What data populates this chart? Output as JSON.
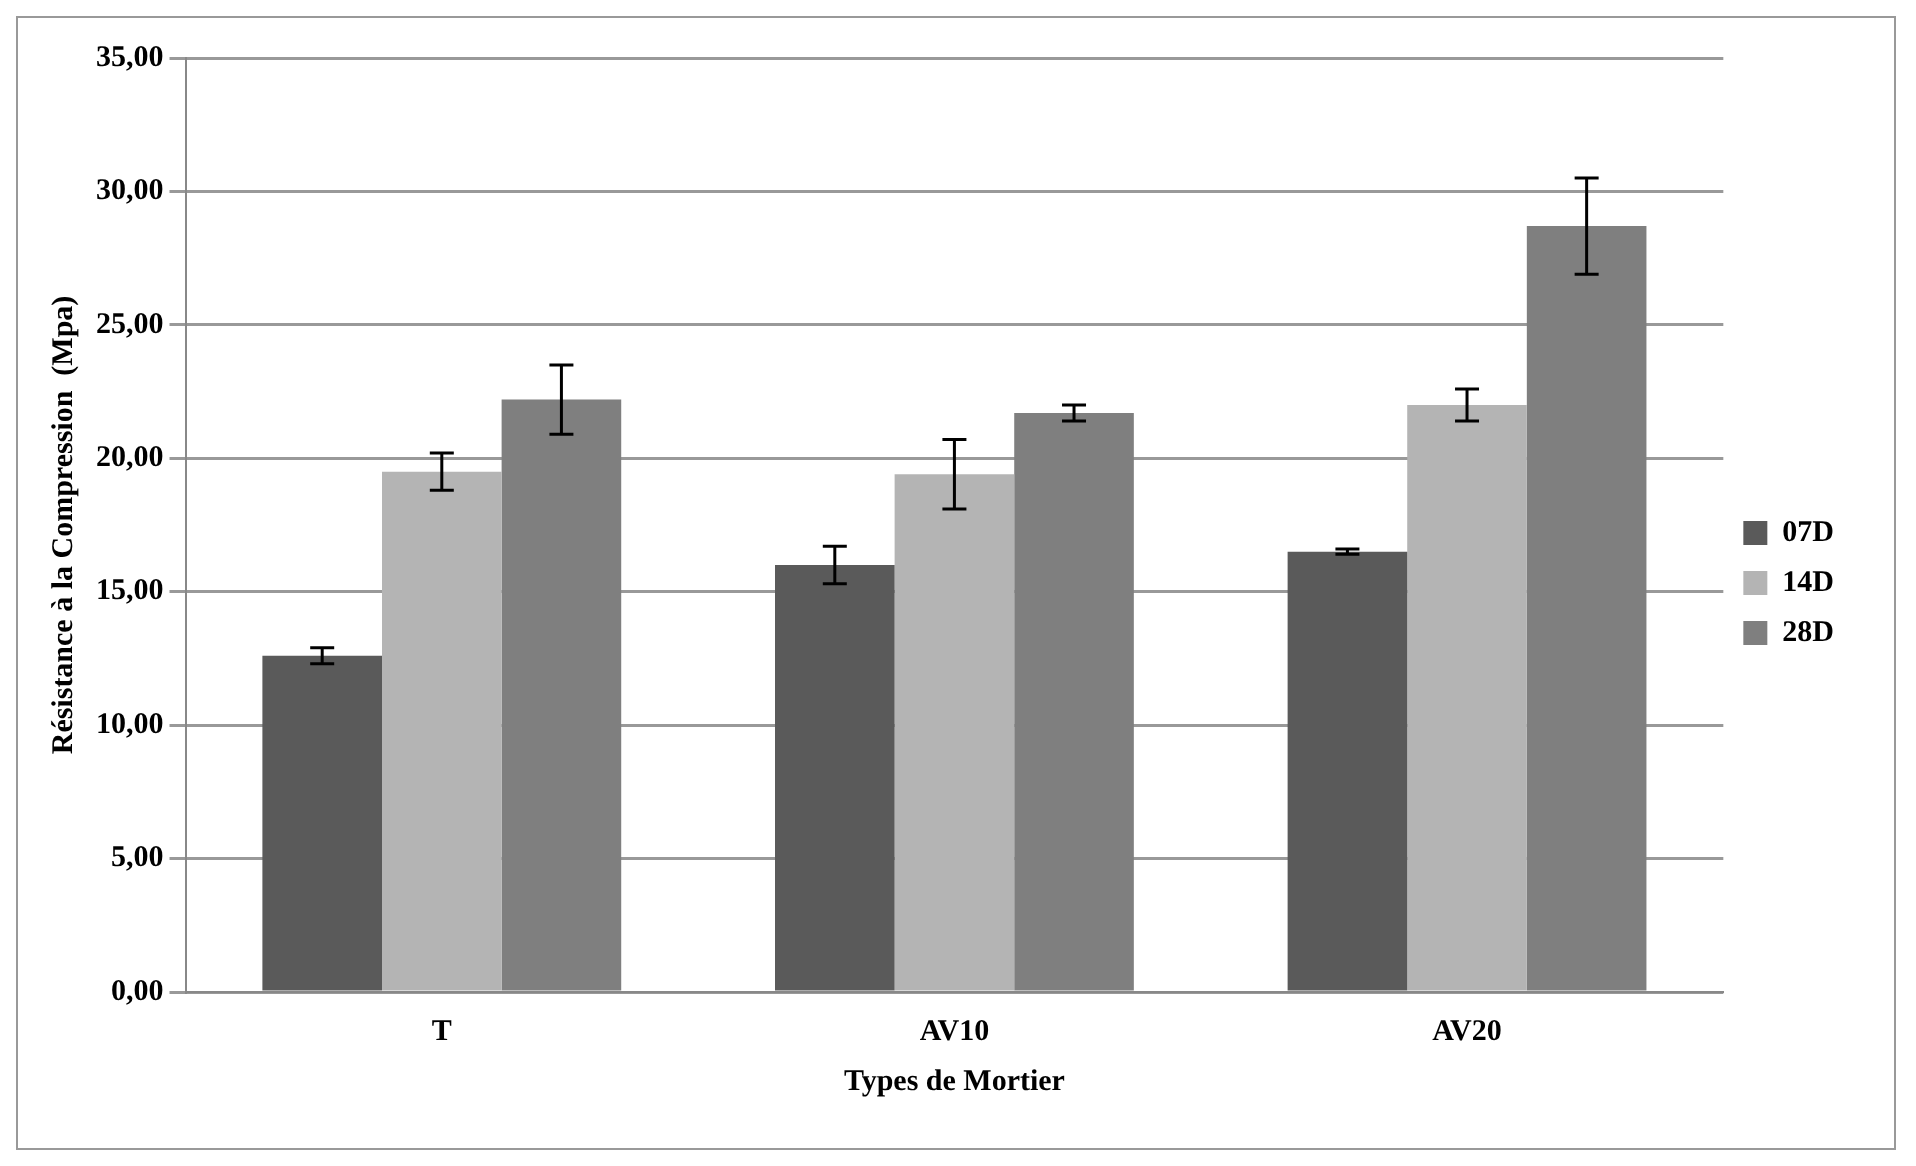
{
  "chart_data": {
    "type": "bar",
    "xlabel": "Types de Mortier",
    "ylabel": "Résistance à la Compression  (Mpa)",
    "categories": [
      "T",
      "AV10",
      "AV20"
    ],
    "series": [
      {
        "name": "07D",
        "color": "#5a5a5a",
        "values": [
          12.6,
          16.0,
          16.5
        ],
        "errors": [
          0.3,
          0.7,
          0.1
        ]
      },
      {
        "name": "14D",
        "color": "#b4b4b4",
        "values": [
          19.5,
          19.4,
          22.0
        ],
        "errors": [
          0.7,
          1.3,
          0.6
        ]
      },
      {
        "name": "28D",
        "color": "#7f7f7f",
        "values": [
          22.2,
          21.7,
          28.7
        ],
        "errors": [
          1.3,
          0.3,
          1.8
        ]
      }
    ],
    "ylim": [
      0,
      35
    ],
    "yticks": [
      {
        "value": 0,
        "label": "0,00"
      },
      {
        "value": 5,
        "label": "5,00"
      },
      {
        "value": 10,
        "label": "10,00"
      },
      {
        "value": 15,
        "label": "15,00"
      },
      {
        "value": 20,
        "label": "20,00"
      },
      {
        "value": 25,
        "label": "25,00"
      },
      {
        "value": 30,
        "label": "30,00"
      },
      {
        "value": 35,
        "label": "35,00"
      }
    ],
    "grid": "y",
    "legend": "right"
  }
}
